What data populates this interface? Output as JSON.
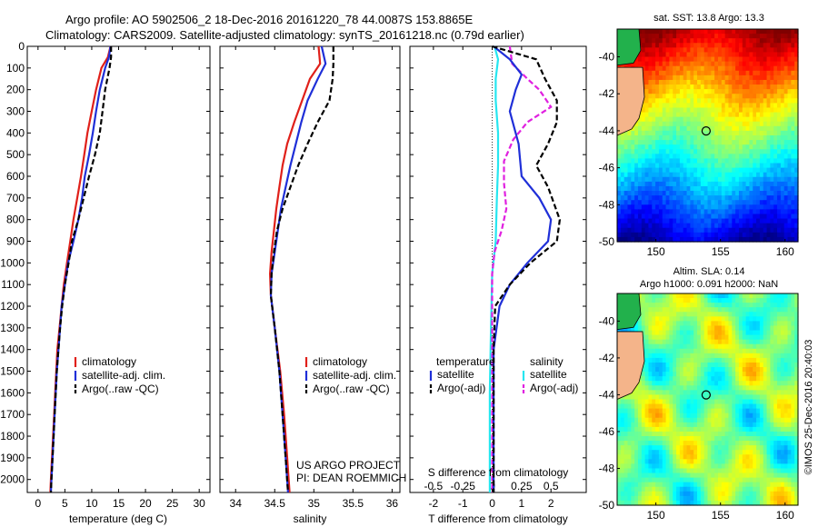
{
  "header": {
    "line1": "Argo profile: AO 5902506_2 18-Dec-2016 20161220_78 44.0087S 153.8865E",
    "line2": "Climatology: CARS2009. Satellite-adjusted climatology: synTS_20161218.nc (0.79d earlier)"
  },
  "colors": {
    "climatology": "#e0201a",
    "satellite": "#1f2fd8",
    "argo": "#000000",
    "sal_satellite": "#26e6f0",
    "sal_argo": "#e020e0"
  },
  "depth_axis": {
    "ticks": [
      "0",
      "100",
      "200",
      "300",
      "400",
      "500",
      "600",
      "700",
      "800",
      "900",
      "1000",
      "1100",
      "1200",
      "1300",
      "1400",
      "1500",
      "1600",
      "1700",
      "1800",
      "1900",
      "2000"
    ],
    "range": [
      0,
      2060
    ]
  },
  "temp_panel": {
    "xlabel": "temperature (deg C)",
    "xticks": [
      "0",
      "5",
      "10",
      "15",
      "20",
      "25",
      "30"
    ],
    "xrange": [
      -2,
      32
    ],
    "legend": [
      "climatology",
      "satellite-adj. clim.",
      "Argo(..raw -QC)"
    ]
  },
  "sal_panel": {
    "xlabel": "salinity",
    "xticks": [
      "34",
      "34.5",
      "35",
      "35.5",
      "36"
    ],
    "xrange": [
      33.8,
      36.1
    ],
    "legend": [
      "climatology",
      "satellite-adj. clim.",
      "Argo(..raw -QC)"
    ],
    "credit1": "US ARGO PROJECT",
    "credit2": "PI: DEAN ROEMMICH"
  },
  "diff_panel": {
    "xlabel": "T difference from climatology",
    "xticks": [
      "-2",
      "-1",
      "0",
      "1",
      "2"
    ],
    "xrange": [
      -2.8,
      3.2
    ],
    "s_label": "S difference from climatology",
    "s_ticks": [
      "-0.5",
      "-0.25",
      "0",
      "0.25",
      "0.5"
    ],
    "leg_t_head": "temperature",
    "leg_s_head": "salinity",
    "leg_t_items": [
      "satellite",
      "Argo(-adj)"
    ],
    "leg_s_items": [
      "satellite",
      "Argo(-adj)"
    ]
  },
  "sst_map": {
    "title": "sat. SST: 13.8 Argo: 13.3",
    "yticks": [
      "-40",
      "-42",
      "-44",
      "-46",
      "-48",
      "-50"
    ],
    "xticks": [
      "150",
      "155",
      "160"
    ]
  },
  "sla_map": {
    "title1": "Altim. SLA: 0.14",
    "title2": "Argo h1000: 0.091 h2000: NaN",
    "yticks": [
      "-40",
      "-42",
      "-44",
      "-46",
      "-48",
      "-50"
    ],
    "xticks": [
      "150",
      "155",
      "160"
    ],
    "watermark": "©IMOS 25-Dec-2016 20:40:03"
  },
  "chart_data": {
    "type": "line",
    "y_axis": "depth (dbar)",
    "temperature": {
      "climatology": [
        [
          0,
          13.5
        ],
        [
          50,
          13.0
        ],
        [
          100,
          11.8
        ],
        [
          200,
          10.8
        ],
        [
          300,
          10.0
        ],
        [
          400,
          9.2
        ],
        [
          500,
          8.6
        ],
        [
          600,
          8.0
        ],
        [
          700,
          7.3
        ],
        [
          800,
          6.6
        ],
        [
          900,
          6.0
        ],
        [
          1000,
          5.4
        ],
        [
          1100,
          4.8
        ],
        [
          1200,
          4.4
        ],
        [
          1300,
          4.0
        ],
        [
          1400,
          3.6
        ],
        [
          1500,
          3.4
        ],
        [
          1600,
          3.2
        ],
        [
          1700,
          3.0
        ],
        [
          1800,
          2.8
        ],
        [
          1900,
          2.6
        ],
        [
          2000,
          2.4
        ],
        [
          2060,
          2.3
        ]
      ],
      "satellite": [
        [
          0,
          13.5
        ],
        [
          50,
          13.2
        ],
        [
          100,
          12.5
        ],
        [
          200,
          11.5
        ],
        [
          300,
          10.8
        ],
        [
          400,
          10.2
        ],
        [
          500,
          9.5
        ],
        [
          600,
          8.7
        ],
        [
          700,
          8.2
        ],
        [
          800,
          7.5
        ],
        [
          900,
          6.6
        ],
        [
          1000,
          5.6
        ],
        [
          1100,
          5.0
        ],
        [
          1200,
          4.4
        ],
        [
          1300,
          4.1
        ],
        [
          1400,
          3.8
        ],
        [
          1500,
          3.5
        ],
        [
          1600,
          3.3
        ],
        [
          1700,
          3.1
        ],
        [
          1800,
          2.9
        ],
        [
          1900,
          2.7
        ],
        [
          2000,
          2.5
        ],
        [
          2060,
          2.4
        ]
      ],
      "argo": [
        [
          0,
          13.6
        ],
        [
          50,
          13.6
        ],
        [
          100,
          13.3
        ],
        [
          200,
          12.5
        ],
        [
          300,
          12.0
        ],
        [
          400,
          11.5
        ],
        [
          500,
          10.6
        ],
        [
          600,
          9.5
        ],
        [
          700,
          8.5
        ],
        [
          800,
          7.5
        ],
        [
          900,
          6.3
        ],
        [
          1000,
          5.7
        ],
        [
          1100,
          5.0
        ],
        [
          1200,
          4.5
        ],
        [
          1300,
          4.1
        ],
        [
          1400,
          3.8
        ],
        [
          1500,
          3.5
        ],
        [
          1600,
          3.3
        ],
        [
          1700,
          3.1
        ],
        [
          1800,
          2.9
        ],
        [
          1900,
          2.7
        ],
        [
          2000,
          2.5
        ],
        [
          2060,
          2.4
        ]
      ]
    },
    "salinity": {
      "climatology": [
        [
          0,
          35.06
        ],
        [
          80,
          35.08
        ],
        [
          150,
          34.95
        ],
        [
          250,
          34.85
        ],
        [
          350,
          34.75
        ],
        [
          450,
          34.66
        ],
        [
          550,
          34.6
        ],
        [
          650,
          34.56
        ],
        [
          750,
          34.52
        ],
        [
          850,
          34.49
        ],
        [
          950,
          34.46
        ],
        [
          1050,
          34.44
        ],
        [
          1150,
          34.45
        ],
        [
          1300,
          34.5
        ],
        [
          1500,
          34.57
        ],
        [
          1700,
          34.62
        ],
        [
          1900,
          34.66
        ],
        [
          2060,
          34.69
        ]
      ],
      "satellite": [
        [
          0,
          35.1
        ],
        [
          80,
          35.15
        ],
        [
          150,
          35.05
        ],
        [
          250,
          34.92
        ],
        [
          350,
          34.84
        ],
        [
          450,
          34.77
        ],
        [
          550,
          34.7
        ],
        [
          650,
          34.64
        ],
        [
          750,
          34.58
        ],
        [
          850,
          34.54
        ],
        [
          950,
          34.5
        ],
        [
          1050,
          34.46
        ],
        [
          1150,
          34.45
        ],
        [
          1300,
          34.5
        ],
        [
          1500,
          34.56
        ],
        [
          1700,
          34.6
        ],
        [
          1900,
          34.64
        ],
        [
          2060,
          34.67
        ]
      ],
      "argo": [
        [
          0,
          35.25
        ],
        [
          80,
          35.25
        ],
        [
          150,
          35.24
        ],
        [
          250,
          35.2
        ],
        [
          350,
          35.05
        ],
        [
          450,
          34.92
        ],
        [
          550,
          34.8
        ],
        [
          650,
          34.7
        ],
        [
          750,
          34.6
        ],
        [
          850,
          34.53
        ],
        [
          950,
          34.49
        ],
        [
          1050,
          34.46
        ],
        [
          1150,
          34.45
        ],
        [
          1300,
          34.5
        ],
        [
          1500,
          34.56
        ],
        [
          1700,
          34.6
        ],
        [
          1900,
          34.64
        ],
        [
          2060,
          34.67
        ]
      ]
    },
    "t_difference": {
      "satellite": [
        [
          0,
          0.05
        ],
        [
          60,
          0.6
        ],
        [
          130,
          1.0
        ],
        [
          200,
          0.8
        ],
        [
          300,
          0.6
        ],
        [
          450,
          0.9
        ],
        [
          600,
          1.0
        ],
        [
          700,
          1.6
        ],
        [
          800,
          2.0
        ],
        [
          900,
          1.9
        ],
        [
          1000,
          1.2
        ],
        [
          1100,
          0.6
        ],
        [
          1200,
          0.25
        ],
        [
          1400,
          0.05
        ],
        [
          1700,
          0.05
        ],
        [
          2060,
          0.05
        ]
      ],
      "argo": [
        [
          0,
          0.0
        ],
        [
          60,
          1.5
        ],
        [
          150,
          1.8
        ],
        [
          250,
          2.2
        ],
        [
          350,
          2.2
        ],
        [
          450,
          1.9
        ],
        [
          550,
          1.5
        ],
        [
          650,
          1.9
        ],
        [
          800,
          2.3
        ],
        [
          900,
          2.2
        ],
        [
          1000,
          1.3
        ],
        [
          1100,
          0.6
        ],
        [
          1200,
          0.1
        ],
        [
          1400,
          0.05
        ],
        [
          1700,
          0.05
        ],
        [
          2060,
          0.05
        ]
      ]
    },
    "s_difference": {
      "satellite": [
        [
          0,
          0.02
        ],
        [
          60,
          0.05
        ],
        [
          150,
          0.03
        ],
        [
          250,
          0.03
        ],
        [
          400,
          0.05
        ],
        [
          550,
          0.05
        ],
        [
          700,
          0.04
        ],
        [
          900,
          0.03
        ],
        [
          1050,
          0.0
        ],
        [
          1300,
          -0.01
        ],
        [
          1600,
          -0.02
        ],
        [
          2060,
          -0.02
        ]
      ],
      "argo": [
        [
          0,
          0.15
        ],
        [
          80,
          0.17
        ],
        [
          150,
          0.3
        ],
        [
          200,
          0.4
        ],
        [
          280,
          0.5
        ],
        [
          350,
          0.3
        ],
        [
          430,
          0.18
        ],
        [
          530,
          0.1
        ],
        [
          630,
          0.1
        ],
        [
          750,
          0.12
        ],
        [
          850,
          0.08
        ],
        [
          950,
          0.02
        ],
        [
          1050,
          0.0
        ],
        [
          1300,
          0.0
        ],
        [
          2060,
          0.0
        ]
      ]
    }
  }
}
